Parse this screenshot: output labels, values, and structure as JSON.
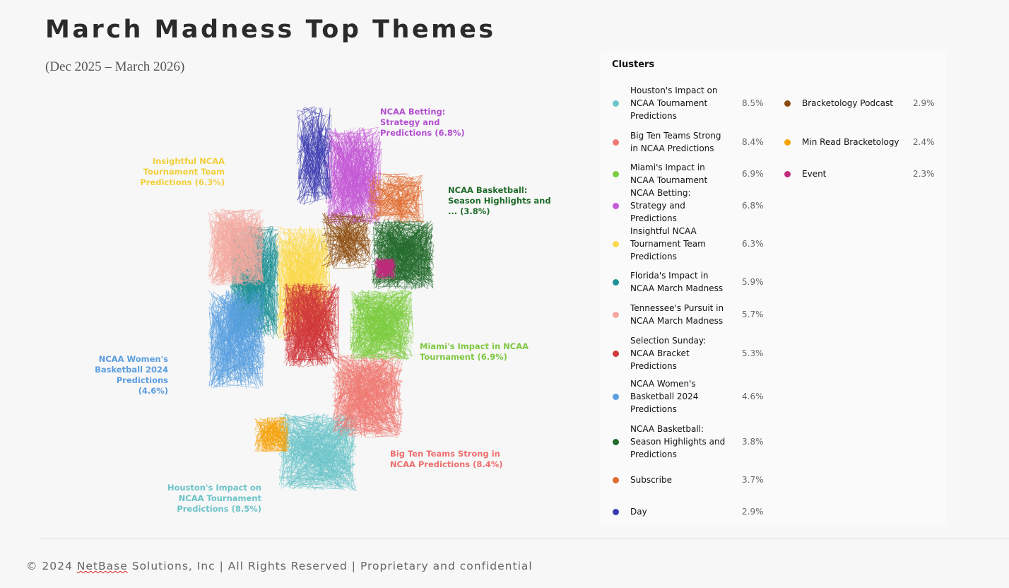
{
  "header": {
    "title": "March Madness Top Themes",
    "subtitle": "(Dec 2025 – March 2026)"
  },
  "network_labels": [
    {
      "text": "NCAA Betting: Strategy and Predictions (6.8%)",
      "color": "#b24fd0"
    },
    {
      "text": "Insightful NCAA Tournament Team Predictions (6.3%)",
      "color": "#f2cf3a"
    },
    {
      "text": "NCAA Basketball: Season Highlights and ... (3.8%)",
      "color": "#1f6b2a"
    },
    {
      "text": "Miami's Impact in NCAA Tournament  (6.9%)",
      "color": "#7fc843"
    },
    {
      "text": "NCAA Women's Basketball 2024 Predictions (4.6%)",
      "color": "#5b9ee0"
    },
    {
      "text": "Big Ten Teams Strong in NCAA Predictions (8.4%)",
      "color": "#ee6e6e"
    },
    {
      "text": "Houston's Impact on NCAA Tournament Predictions (8.5%)",
      "color": "#6cc3c8"
    }
  ],
  "legend": {
    "title": "Clusters",
    "items": [
      {
        "label": "Houston's Impact on NCAA Tournament Predictions",
        "pct": "8.5%",
        "color": "#6cc5c9"
      },
      {
        "label": "Big Ten Teams Strong in NCAA Predictions",
        "pct": "8.4%",
        "color": "#f07a74"
      },
      {
        "label": "Miami's Impact in NCAA Tournament",
        "pct": "6.9%",
        "color": "#7ccc3f"
      },
      {
        "label": "NCAA Betting: Strategy and Predictions",
        "pct": "6.8%",
        "color": "#c45ad6"
      },
      {
        "label": "Insightful NCAA Tournament Team Predictions",
        "pct": "6.3%",
        "color": "#fbd94a"
      },
      {
        "label": "Florida's Impact in NCAA March Madness",
        "pct": "5.9%",
        "color": "#1f9196"
      },
      {
        "label": "Tennessee's Pursuit in NCAA March Madness",
        "pct": "5.7%",
        "color": "#f4a9a0"
      },
      {
        "label": "Selection Sunday: NCAA Bracket Predictions",
        "pct": "5.3%",
        "color": "#d0383c"
      },
      {
        "label": "NCAA Women's Basketball 2024 Predictions",
        "pct": "4.6%",
        "color": "#5aa0e0"
      },
      {
        "label": "NCAA Basketball: Season Highlights and Predictions",
        "pct": "3.8%",
        "color": "#236b2c"
      },
      {
        "label": "Subscribe",
        "pct": "3.7%",
        "color": "#e06b2e"
      },
      {
        "label": "Day",
        "pct": "2.9%",
        "color": "#3a3ab0"
      },
      {
        "label": "Bracketology Podcast",
        "pct": "2.9%",
        "color": "#8b4a0c"
      },
      {
        "label": "Min Read Bracketology",
        "pct": "2.4%",
        "color": "#f5a20a"
      },
      {
        "label": "Event",
        "pct": "2.3%",
        "color": "#c22a7c"
      }
    ]
  },
  "footer": {
    "prefix": "© 2024 ",
    "brand": "NetBase",
    "suffix": " Solutions, Inc | All Rights Reserved | Proprietary and confidential"
  }
}
